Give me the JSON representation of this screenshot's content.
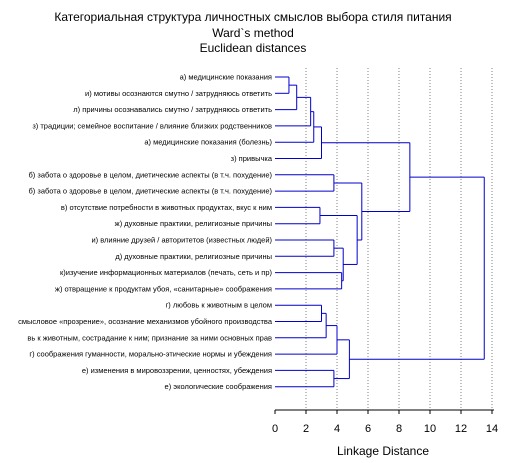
{
  "chart_data": {
    "type": "dendrogram",
    "title": "Категориальная структура личностных смыслов выбора стиля питания",
    "subtitle_1": "Ward`s method",
    "subtitle_2": "Euclidean distances",
    "xlabel": "Linkage Distance",
    "xlim": [
      0,
      14
    ],
    "xticks": [
      0,
      2,
      4,
      6,
      8,
      10,
      12,
      14
    ],
    "grid": "vertical dotted",
    "colors": {
      "tree": "#0000cc",
      "grid": "#7f7f7f",
      "axis": "#000000",
      "text": "#000000"
    },
    "leaves": [
      "а) медицинские показания",
      "и) мотивы осознаются смутно / затрудняюсь ответить",
      "л) причины осознавались смутно / затрудняюсь ответить",
      "з) традиции; семейное воспитание / влияние близких родственников",
      "а) медицинские показания (болезнь)",
      "з) привычка",
      "б) забота о здоровье в целом, диетические аспекты (в т.ч. похудение)",
      "б) забота о здоровье в целом, диетические аспекты (в т.ч. похудение)",
      "в) отсутствие потребности в животных продуктах, вкус к ним",
      "ж) духовные практики, религиозные причины",
      "и) влияние друзей / авторитетов (известных людей)",
      "д) духовные практики, религиозные причины",
      "к)изучение информационных материалов (печать, сеть и пр)",
      "ж) отвращение к продуктам убоя, «санитарные» соображения",
      "г) любовь к животным в целом",
      "смысловое «прозрение», осознание механизмов убойного производства",
      "вь к животным, сострадание к ним; признание за ними основных прав",
      "г) соображения гуманности, морально-этические нормы и убеждения",
      "е) изменения в мировоззрении, ценностях, убеждения",
      "е) экологические соображения"
    ],
    "merges": [
      {
        "id": "m1",
        "a": "L0",
        "b": "L1",
        "height": 0.9
      },
      {
        "id": "m2",
        "a": "m1",
        "b": "L2",
        "height": 1.4
      },
      {
        "id": "m3",
        "a": "m2",
        "b": "L3",
        "height": 2.3
      },
      {
        "id": "m4",
        "a": "m3",
        "b": "L4",
        "height": 2.5
      },
      {
        "id": "m5",
        "a": "m4",
        "b": "L5",
        "height": 3.0
      },
      {
        "id": "m6",
        "a": "L6",
        "b": "L7",
        "height": 3.8
      },
      {
        "id": "m7",
        "a": "L8",
        "b": "L9",
        "height": 2.9
      },
      {
        "id": "m8",
        "a": "L10",
        "b": "L11",
        "height": 3.8
      },
      {
        "id": "m9",
        "a": "L12",
        "b": "L13",
        "height": 4.3
      },
      {
        "id": "m10",
        "a": "m8",
        "b": "m9",
        "height": 4.4
      },
      {
        "id": "m11",
        "a": "m7",
        "b": "m10",
        "height": 5.3
      },
      {
        "id": "m12",
        "a": "m6",
        "b": "m11",
        "height": 5.6
      },
      {
        "id": "m13",
        "a": "m5",
        "b": "m12",
        "height": 8.7
      },
      {
        "id": "m14",
        "a": "L14",
        "b": "L15",
        "height": 3.0
      },
      {
        "id": "m15",
        "a": "m14",
        "b": "L16",
        "height": 3.3
      },
      {
        "id": "m16",
        "a": "m15",
        "b": "L17",
        "height": 4.0
      },
      {
        "id": "m17",
        "a": "L18",
        "b": "L19",
        "height": 3.8
      },
      {
        "id": "m18",
        "a": "m16",
        "b": "m17",
        "height": 4.8
      },
      {
        "id": "m19",
        "a": "m13",
        "b": "m18",
        "height": 13.5
      }
    ]
  }
}
